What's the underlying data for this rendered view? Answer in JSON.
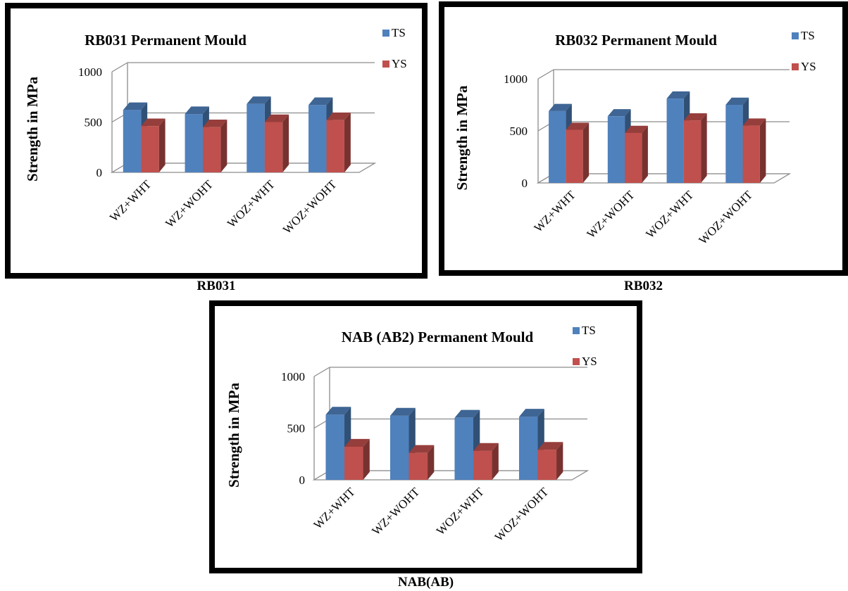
{
  "series_colors": {
    "TS": "#4F81BD",
    "YS": "#C0504D"
  },
  "chart_data": [
    {
      "type": "bar",
      "title": "RB031 Permanent Mould",
      "ylabel": "Strength in MPa",
      "xlabel": "",
      "categories": [
        "WZ+WHT",
        "WZ+WOHT",
        "WOZ+WHT",
        "WOZ+WOHT"
      ],
      "series": [
        {
          "name": "TS",
          "values": [
            620,
            580,
            680,
            670
          ]
        },
        {
          "name": "YS",
          "values": [
            460,
            450,
            500,
            520
          ]
        }
      ],
      "yticks": [
        "0",
        "500",
        "1000"
      ],
      "ylim": [
        0,
        1000
      ],
      "grid": true,
      "legend": "top-right",
      "caption": "RB031"
    },
    {
      "type": "bar",
      "title": "RB032 Permanent Mould",
      "ylabel": "Strength in MPa",
      "xlabel": "",
      "categories": [
        "WZ+WHT",
        "WZ+WOHT",
        "WOZ+WHT",
        "WOZ+WOHT"
      ],
      "series": [
        {
          "name": "TS",
          "values": [
            690,
            640,
            810,
            750
          ]
        },
        {
          "name": "YS",
          "values": [
            510,
            480,
            600,
            550
          ]
        }
      ],
      "yticks": [
        "0",
        "500",
        "1000"
      ],
      "ylim": [
        0,
        1000
      ],
      "grid": true,
      "legend": "top-right",
      "caption": "RB032"
    },
    {
      "type": "bar",
      "title": "NAB (AB2) Permanent Mould",
      "ylabel": "Strength in MPa",
      "xlabel": "",
      "categories": [
        "WZ+WHT",
        "WZ+WOHT",
        "WOZ+WHT",
        "WOZ+WOHT"
      ],
      "series": [
        {
          "name": "TS",
          "values": [
            630,
            620,
            600,
            610
          ]
        },
        {
          "name": "YS",
          "values": [
            320,
            260,
            280,
            290
          ]
        }
      ],
      "yticks": [
        "0",
        "500",
        "1000"
      ],
      "ylim": [
        0,
        1000
      ],
      "grid": true,
      "legend": "top-right",
      "caption": "NAB(AB)"
    }
  ]
}
